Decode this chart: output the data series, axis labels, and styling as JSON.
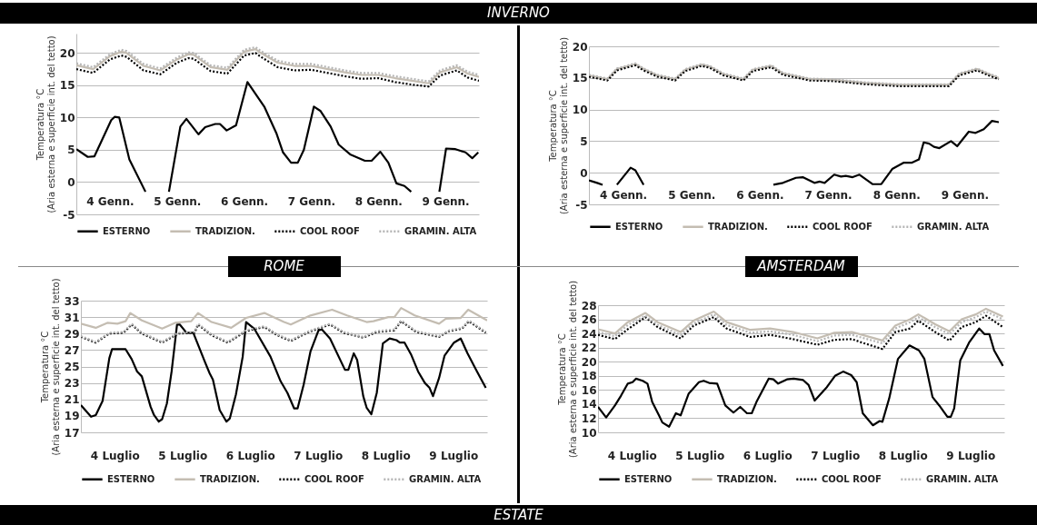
{
  "chart_data": [
    {
      "type": "line",
      "annotations": [
        "INVERNO"
      ],
      "ylabel": "Temperatura °C\n(Aria esterna e superficie int. del tetto)",
      "xlim": [
        3.5,
        9.5
      ],
      "xticks": [
        {
          "value": 4,
          "label": "4 Genn."
        },
        {
          "value": 5,
          "label": "5 Genn."
        },
        {
          "value": 6,
          "label": "6 Genn."
        },
        {
          "value": 7,
          "label": "7 Genn."
        },
        {
          "value": 8,
          "label": "8 Genn."
        },
        {
          "value": 9,
          "label": "9 Genn."
        }
      ],
      "ylim": [
        -5,
        23
      ],
      "yticks": [
        -5,
        0,
        5,
        10,
        15,
        20
      ],
      "grid": "y",
      "legend": "bottom",
      "series": [
        {
          "name": "ESTERNO",
          "color": "#000000",
          "line_style": "solid",
          "x": [
            3.5,
            3.67,
            3.77,
            4.02,
            4.07,
            4.14,
            4.29,
            4.53,
            4.67,
            4.88,
            5.05,
            5.14,
            5.32,
            5.42,
            5.57,
            5.64,
            5.74,
            5.88,
            6.05,
            6.3,
            6.48,
            6.58,
            6.7,
            6.8,
            6.89,
            7.04,
            7.14,
            7.29,
            7.41,
            7.58,
            7.8,
            7.9,
            8.03,
            8.15,
            8.27,
            8.39,
            8.49,
            8.67,
            8.91,
            9.01,
            9.15,
            9.3,
            9.4,
            9.49
          ],
          "values": [
            5.1,
            3.9,
            4,
            9.6,
            10.1,
            10,
            3.5,
            -1.5,
            null,
            -1.5,
            8.6,
            9.8,
            7.4,
            8.5,
            9,
            9,
            8,
            8.8,
            15.5,
            11.7,
            7.6,
            4.6,
            3,
            3,
            5,
            11.7,
            11,
            8.6,
            5.8,
            4.3,
            3.3,
            3.3,
            4.7,
            3,
            -0.2,
            -0.6,
            -1.5,
            null,
            -1.5,
            5.2,
            5.1,
            4.6,
            3.7,
            4.6
          ]
        },
        {
          "name": "TRADIZION.",
          "color": "#c4bdb2",
          "line_style": "solid",
          "x": [
            3.5,
            3.75,
            4,
            4.17,
            4.25,
            4.5,
            4.75,
            5,
            5.17,
            5.25,
            5.5,
            5.75,
            6,
            6.17,
            6.25,
            6.5,
            6.75,
            7,
            7.25,
            7.5,
            7.75,
            8,
            8.25,
            8.5,
            8.75,
            8.92,
            9.17,
            9.33,
            9.5
          ],
          "values": [
            18.1,
            17.5,
            19.5,
            20.2,
            20,
            18,
            17.3,
            19,
            19.8,
            19.7,
            17.8,
            17.4,
            20.2,
            20.6,
            20,
            18.5,
            18,
            18,
            17.5,
            17,
            16.6,
            16.6,
            16.1,
            15.7,
            15.3,
            17,
            17.8,
            16.8,
            16.3
          ]
        },
        {
          "name": "COOL ROOF",
          "color": "#000000",
          "line_style": "dotted",
          "x": [
            3.5,
            3.75,
            4,
            4.17,
            4.25,
            4.5,
            4.75,
            5,
            5.17,
            5.25,
            5.5,
            5.75,
            6,
            6.17,
            6.25,
            6.5,
            6.75,
            7,
            7.25,
            7.5,
            7.75,
            8,
            8.25,
            8.5,
            8.75,
            8.92,
            9.17,
            9.33,
            9.5
          ],
          "values": [
            17.5,
            16.9,
            19,
            19.6,
            19.4,
            17.3,
            16.7,
            18.5,
            19.2,
            19.1,
            17.2,
            16.8,
            19.6,
            20,
            19.4,
            17.8,
            17.3,
            17.4,
            16.9,
            16.4,
            16,
            16.1,
            15.5,
            15.1,
            14.8,
            16.5,
            17.3,
            16.2,
            15.7
          ]
        },
        {
          "name": "GRAMIN. ALTA",
          "color": "#b5b5b5",
          "line_style": "dotted",
          "x": [
            3.5,
            3.75,
            4,
            4.17,
            4.25,
            4.5,
            4.75,
            5,
            5.17,
            5.25,
            5.5,
            5.75,
            6,
            6.17,
            6.25,
            6.5,
            6.75,
            7,
            7.25,
            7.5,
            7.75,
            8,
            8.25,
            8.5,
            8.75,
            8.92,
            9.17,
            9.33,
            9.5
          ],
          "values": [
            18.4,
            17.8,
            19.8,
            20.5,
            20.3,
            18.3,
            17.6,
            19.3,
            20.1,
            20,
            18.1,
            17.7,
            20.5,
            20.9,
            20.3,
            18.8,
            18.3,
            18.3,
            17.8,
            17.3,
            16.9,
            16.9,
            16.4,
            16,
            15.6,
            17.3,
            18.1,
            17.1,
            16.6
          ]
        }
      ]
    },
    {
      "type": "line",
      "ylabel": "Temperatura °C\n(Aria esterna e superficie int. del tetto)",
      "xlim": [
        3.5,
        9.5
      ],
      "xticks": [
        {
          "value": 4,
          "label": "4 Genn."
        },
        {
          "value": 5,
          "label": "5 Genn."
        },
        {
          "value": 6,
          "label": "6 Genn."
        },
        {
          "value": 7,
          "label": "7 Genn."
        },
        {
          "value": 8,
          "label": "8 Genn."
        },
        {
          "value": 9,
          "label": "9 Genn."
        }
      ],
      "ylim": [
        -5,
        20
      ],
      "yticks": [
        -5,
        0,
        5,
        10,
        15,
        20
      ],
      "grid": "y",
      "legend": "bottom",
      "series": [
        {
          "name": "ESTERNO",
          "color": "#000000",
          "line_style": "solid",
          "x": [
            3.5,
            3.62,
            3.7,
            3.79,
            3.91,
            4.11,
            4.18,
            4.3,
            5.17,
            6.2,
            6.34,
            6.53,
            6.63,
            6.8,
            6.88,
            6.95,
            7.09,
            7.19,
            7.26,
            7.36,
            7.46,
            7.65,
            7.78,
            7.94,
            8.11,
            8.23,
            8.33,
            8.4,
            8.48,
            8.55,
            8.63,
            8.8,
            8.89,
            9.06,
            9.16,
            9.28,
            9.4,
            9.5
          ],
          "values": [
            -1.2,
            -1.6,
            -1.9,
            null,
            -1.9,
            0.8,
            0.4,
            -1.9,
            null,
            -1.9,
            -1.6,
            -0.8,
            -0.7,
            -1.6,
            -1.4,
            -1.6,
            -0.3,
            -0.6,
            -0.5,
            -0.7,
            -0.3,
            -1.8,
            -1.8,
            0.6,
            1.6,
            1.6,
            2.1,
            4.8,
            4.6,
            4.1,
            3.9,
            5,
            4.2,
            6.5,
            6.3,
            6.9,
            8.2,
            8
          ]
        },
        {
          "name": "TRADIZION.",
          "color": "#c4bdb2",
          "line_style": "solid",
          "x": [
            3.5,
            3.77,
            3.91,
            4.18,
            4.3,
            4.5,
            4.76,
            4.91,
            5.15,
            5.27,
            5.47,
            5.76,
            5.9,
            6.17,
            6.34,
            6.73,
            7.07,
            7.55,
            8.04,
            8.77,
            8.92,
            9.18,
            9.35,
            9.5
          ],
          "values": [
            15.4,
            14.8,
            16.4,
            17.2,
            16.4,
            15.4,
            14.8,
            16.3,
            17.1,
            16.8,
            15.6,
            14.8,
            16.3,
            16.9,
            15.7,
            14.8,
            14.7,
            14.2,
            13.9,
            13.9,
            15.6,
            16.4,
            15.6,
            15
          ]
        },
        {
          "name": "COOL ROOF",
          "color": "#000000",
          "line_style": "dotted",
          "x": [
            3.5,
            3.77,
            3.91,
            4.18,
            4.3,
            4.5,
            4.76,
            4.91,
            5.15,
            5.27,
            5.47,
            5.76,
            5.9,
            6.17,
            6.34,
            6.73,
            7.07,
            7.55,
            8.04,
            8.77,
            8.92,
            9.18,
            9.35,
            9.5
          ],
          "values": [
            15.2,
            14.6,
            16.2,
            17,
            16.2,
            15.2,
            14.6,
            16.1,
            16.9,
            16.6,
            15.4,
            14.6,
            16.1,
            16.7,
            15.5,
            14.6,
            14.5,
            14,
            13.7,
            13.7,
            15.4,
            16.2,
            15.4,
            14.8
          ]
        },
        {
          "name": "GRAMIN. ALTA",
          "color": "#b5b5b5",
          "line_style": "dotted",
          "x": [
            3.5,
            3.77,
            3.91,
            4.18,
            4.3,
            4.5,
            4.76,
            4.91,
            5.15,
            5.27,
            5.47,
            5.76,
            5.9,
            6.17,
            6.34,
            6.73,
            7.07,
            7.55,
            8.04,
            8.77,
            8.92,
            9.18,
            9.35,
            9.5
          ],
          "values": [
            15.5,
            14.9,
            16.5,
            17.3,
            16.5,
            15.5,
            14.9,
            16.4,
            17.2,
            16.9,
            15.7,
            14.9,
            16.4,
            17,
            15.8,
            14.9,
            14.8,
            14.3,
            14,
            14,
            15.7,
            16.5,
            15.7,
            15.1
          ]
        }
      ]
    },
    {
      "type": "line",
      "title": "ROME",
      "annotations": [
        "ESTATE"
      ],
      "ylabel": "Temperatura °C\n(Aria esterna e superficie int. del tetto)",
      "xlim": [
        3.5,
        9.5
      ],
      "xticks": [
        {
          "value": 4,
          "label": "4 Luglio"
        },
        {
          "value": 5,
          "label": "5 Luglio"
        },
        {
          "value": 6,
          "label": "6 Luglio"
        },
        {
          "value": 7,
          "label": "7 Luglio"
        },
        {
          "value": 8,
          "label": "8 Luglio"
        },
        {
          "value": 9,
          "label": "9 Luglio"
        }
      ],
      "ylim": [
        17,
        33
      ],
      "yticks": [
        17,
        19,
        21,
        23,
        25,
        27,
        29,
        31,
        33
      ],
      "grid": "y",
      "legend": "bottom",
      "series": [
        {
          "name": "ESTERNO",
          "color": "#000000",
          "line_style": "solid",
          "x": [
            3.5,
            3.65,
            3.72,
            3.82,
            3.92,
            3.96,
            4.16,
            4.25,
            4.33,
            4.4,
            4.53,
            4.58,
            4.65,
            4.7,
            4.77,
            4.84,
            4.92,
            4.96,
            5.06,
            5.16,
            5.33,
            5.4,
            5.45,
            5.55,
            5.65,
            5.7,
            5.79,
            5.89,
            5.94,
            6.06,
            6.3,
            6.45,
            6.55,
            6.65,
            6.7,
            6.79,
            6.89,
            7.01,
            7.06,
            7.18,
            7.4,
            7.45,
            7.53,
            7.58,
            7.67,
            7.72,
            7.79,
            7.87,
            7.96,
            8.06,
            8.16,
            8.21,
            8.28,
            8.38,
            8.48,
            8.58,
            8.65,
            8.7,
            8.79,
            8.87,
            9.01,
            9.11,
            9.21,
            9.35,
            9.48
          ],
          "values": [
            20.3,
            18.9,
            19.1,
            20.8,
            26,
            27.1,
            27.1,
            25.9,
            24.4,
            23.8,
            20.1,
            19.1,
            18.3,
            18.6,
            20.5,
            24.4,
            30.1,
            30.1,
            29.1,
            29.1,
            25.6,
            24.2,
            23.4,
            19.7,
            18.3,
            18.7,
            21.6,
            26.2,
            30.4,
            29.6,
            26.2,
            23.2,
            21.8,
            19.9,
            19.9,
            22.8,
            26.8,
            29.4,
            29.5,
            28.4,
            24.6,
            24.6,
            26.6,
            25.8,
            21.4,
            20,
            19.2,
            21.8,
            27.8,
            28.4,
            28.2,
            27.9,
            27.9,
            26.4,
            24.4,
            23,
            22.4,
            21.4,
            23.6,
            26.3,
            27.9,
            28.4,
            26.6,
            24.4,
            22.4
          ]
        },
        {
          "name": "TRADIZION.",
          "color": "#c4bdb2",
          "line_style": "solid",
          "x": [
            3.5,
            3.72,
            3.89,
            4.04,
            4.16,
            4.23,
            4.4,
            4.7,
            4.89,
            5.13,
            5.23,
            5.43,
            5.72,
            5.94,
            6.21,
            6.5,
            6.6,
            6.89,
            7.21,
            7.43,
            7.72,
            7.82,
            8.04,
            8.13,
            8.23,
            8.43,
            8.79,
            8.89,
            9.11,
            9.22,
            9.5
          ],
          "values": [
            30.2,
            29.7,
            30.3,
            30.2,
            30.5,
            31.5,
            30.6,
            29.6,
            30.3,
            30.5,
            31.5,
            30.4,
            29.7,
            30.9,
            31.5,
            30.4,
            30.1,
            31.2,
            31.9,
            31.2,
            30.4,
            30.5,
            31,
            31,
            32.1,
            31.2,
            30.2,
            30.8,
            30.9,
            31.9,
            30.6
          ]
        },
        {
          "name": "COOL ROOF",
          "color": "#000000",
          "line_style": "dotted",
          "x": [
            3.5,
            3.72,
            3.92,
            4.13,
            4.25,
            4.4,
            4.7,
            4.94,
            5.18,
            5.23,
            5.43,
            5.67,
            5.94,
            6.21,
            6.4,
            6.6,
            6.87,
            7.18,
            7.38,
            7.67,
            7.87,
            8.13,
            8.23,
            8.45,
            8.79,
            8.94,
            9.13,
            9.23,
            9.48
          ],
          "values": [
            28.6,
            27.9,
            29,
            29.1,
            30.1,
            29,
            27.9,
            29,
            29.1,
            30.1,
            28.8,
            27.9,
            29.3,
            29.8,
            28.8,
            28.1,
            29.2,
            30.1,
            29.1,
            28.5,
            29.2,
            29.4,
            30.5,
            29.2,
            28.6,
            29.3,
            29.6,
            30.5,
            29.1
          ]
        },
        {
          "name": "GRAMIN. ALTA",
          "color": "#b5b5b5",
          "line_style": "dotted",
          "x": [
            3.5,
            3.72,
            3.92,
            4.13,
            4.25,
            4.4,
            4.7,
            4.94,
            5.18,
            5.23,
            5.43,
            5.67,
            5.94,
            6.21,
            6.4,
            6.6,
            6.87,
            7.18,
            7.38,
            7.67,
            7.87,
            8.13,
            8.23,
            8.45,
            8.79,
            8.94,
            9.13,
            9.23,
            9.48
          ],
          "values": [
            28.7,
            28,
            29.1,
            29.2,
            30.2,
            29.1,
            28,
            29.1,
            29.2,
            30.2,
            28.9,
            28,
            29.4,
            29.9,
            28.9,
            28.2,
            29.3,
            30.2,
            29.2,
            28.6,
            29.3,
            29.5,
            30.6,
            29.3,
            28.7,
            29.4,
            29.7,
            30.6,
            29.2
          ]
        }
      ]
    },
    {
      "type": "line",
      "title": "AMSTERDAM",
      "ylabel": "Temperatura °C\n(Aria esterna e superficie int. del tetto)",
      "xlim": [
        3.5,
        9.5
      ],
      "xticks": [
        {
          "value": 4,
          "label": "4 Luglio"
        },
        {
          "value": 5,
          "label": "5 Luglio"
        },
        {
          "value": 6,
          "label": "6 Luglio"
        },
        {
          "value": 7,
          "label": "7 Luglio"
        },
        {
          "value": 8,
          "label": "8 Luglio"
        },
        {
          "value": 9,
          "label": "9 Luglio"
        }
      ],
      "ylim": [
        10,
        28
      ],
      "yticks": [
        10,
        12,
        14,
        16,
        18,
        20,
        22,
        24,
        26,
        28
      ],
      "grid": "y",
      "legend": "bottom",
      "series": [
        {
          "name": "ESTERNO",
          "color": "#000000",
          "line_style": "solid",
          "x": [
            3.5,
            3.62,
            3.75,
            3.84,
            3.94,
            4.01,
            4.06,
            4.16,
            4.23,
            4.3,
            4.4,
            4.45,
            4.55,
            4.65,
            4.72,
            4.84,
            4.99,
            5.06,
            5.14,
            5.26,
            5.38,
            5.5,
            5.6,
            5.7,
            5.77,
            5.84,
            6.02,
            6.09,
            6.16,
            6.29,
            6.39,
            6.53,
            6.61,
            6.7,
            6.88,
            7,
            7.12,
            7.24,
            7.32,
            7.41,
            7.56,
            7.66,
            7.7,
            7.8,
            7.93,
            8.1,
            8.24,
            8.32,
            8.44,
            8.54,
            8.66,
            8.71,
            8.76,
            8.85,
            8.98,
            9.13,
            9.21,
            9.28,
            9.35,
            9.48
          ],
          "values": [
            13.6,
            12.1,
            13.8,
            15.2,
            16.9,
            17.1,
            17.6,
            17.3,
            16.9,
            14.3,
            12.4,
            11.4,
            10.8,
            12.7,
            12.4,
            15.5,
            17.1,
            17.3,
            17,
            16.9,
            13.8,
            12.8,
            13.6,
            12.7,
            12.7,
            14.3,
            17.6,
            17.5,
            16.9,
            17.5,
            17.6,
            17.4,
            16.7,
            14.5,
            16.4,
            18,
            18.6,
            18.1,
            17.1,
            12.7,
            11,
            11.6,
            11.5,
            14.8,
            20.4,
            22.3,
            21.6,
            20.4,
            15,
            13.8,
            12.2,
            12.2,
            13.4,
            20.2,
            22.7,
            24.7,
            23.9,
            23.9,
            21.6,
            19.4
          ]
        },
        {
          "name": "TRADIZION.",
          "color": "#c4bdb2",
          "line_style": "solid",
          "x": [
            3.5,
            3.75,
            3.94,
            4.2,
            4.38,
            4.72,
            4.91,
            5.21,
            5.4,
            5.75,
            6.04,
            6.38,
            6.74,
            6.99,
            7.25,
            7.4,
            7.7,
            7.89,
            8.11,
            8.23,
            8.48,
            8.69,
            8.87,
            9.08,
            9.23,
            9.48
          ],
          "values": [
            24.6,
            24,
            25.6,
            26.9,
            25.6,
            24.2,
            25.8,
            27.1,
            25.6,
            24.5,
            24.7,
            24.2,
            23.3,
            24.1,
            24.2,
            23.8,
            23,
            25.1,
            26,
            26.7,
            25.3,
            24.3,
            26,
            26.7,
            27.5,
            26.4
          ]
        },
        {
          "name": "COOL ROOF",
          "color": "#000000",
          "line_style": "dotted",
          "x": [
            3.5,
            3.75,
            3.94,
            4.2,
            4.38,
            4.72,
            4.91,
            5.21,
            5.4,
            5.75,
            6.04,
            6.38,
            6.74,
            6.99,
            7.25,
            7.4,
            7.7,
            7.89,
            8.11,
            8.23,
            8.48,
            8.69,
            8.87,
            9.08,
            9.23,
            9.48
          ],
          "values": [
            23.8,
            23.2,
            24.6,
            26.3,
            24.9,
            23.3,
            25.1,
            26.3,
            24.7,
            23.5,
            23.8,
            23.2,
            22.4,
            23.1,
            23.2,
            22.7,
            21.8,
            24.2,
            24.7,
            25.8,
            24.2,
            23,
            24.9,
            25.6,
            26.5,
            24.9
          ]
        },
        {
          "name": "GRAMIN. ALTA",
          "color": "#b5b5b5",
          "line_style": "dotted",
          "x": [
            3.5,
            3.75,
            3.94,
            4.2,
            4.38,
            4.72,
            4.91,
            5.21,
            5.4,
            5.75,
            6.04,
            6.38,
            6.74,
            6.99,
            7.25,
            7.4,
            7.7,
            7.89,
            8.11,
            8.23,
            8.48,
            8.69,
            8.87,
            9.08,
            9.23,
            9.48
          ],
          "values": [
            24.2,
            23.6,
            25.2,
            26.5,
            25.2,
            23.8,
            25.4,
            26.7,
            25.2,
            24.1,
            24.3,
            23.8,
            22.9,
            23.7,
            23.8,
            23.4,
            22.6,
            24.7,
            25.6,
            26.3,
            24.9,
            23.9,
            25.6,
            26.3,
            27.1,
            26
          ]
        }
      ]
    }
  ]
}
